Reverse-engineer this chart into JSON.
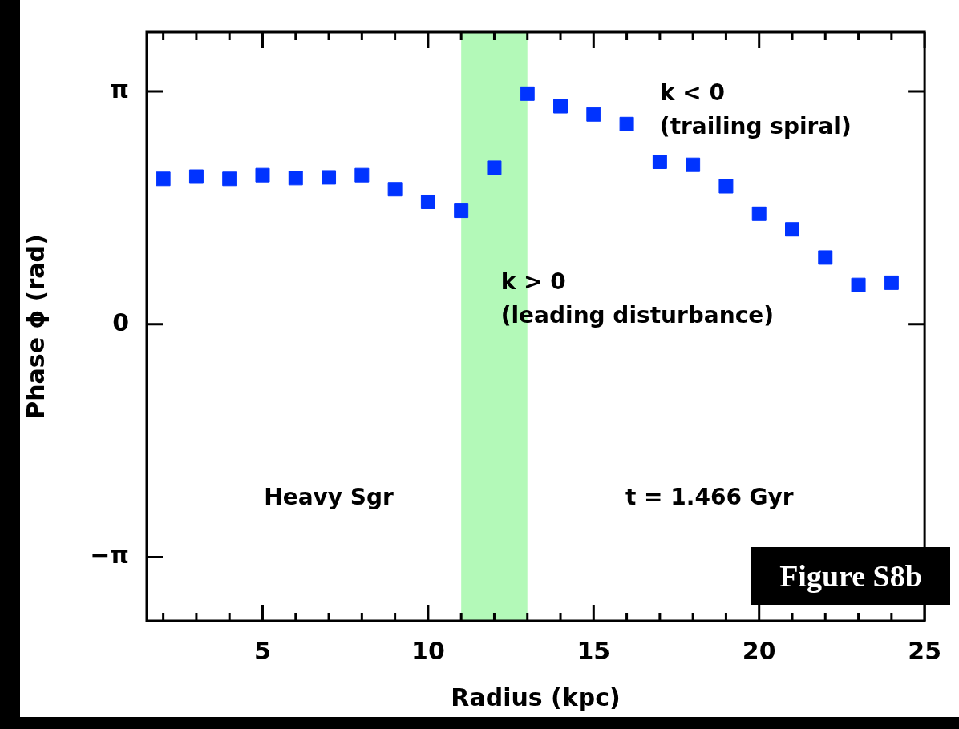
{
  "chart_data": {
    "type": "scatter",
    "xlabel": "Radius (kpc)",
    "ylabel": "Phase ϕ (rad)",
    "x": [
      2,
      3,
      4,
      5,
      6,
      7,
      8,
      9,
      10,
      11,
      12,
      13,
      14,
      15,
      16,
      17,
      18,
      19,
      20,
      21,
      22,
      23,
      24
    ],
    "series": [
      {
        "color": "#0033ff",
        "values": [
          1.96,
          1.99,
          1.96,
          2.01,
          1.97,
          1.98,
          2.01,
          1.82,
          1.65,
          1.53,
          2.11,
          3.11,
          2.94,
          2.83,
          2.7,
          2.19,
          2.15,
          1.86,
          1.49,
          1.28,
          0.9,
          0.53,
          0.56
        ]
      }
    ],
    "xlim": [
      1.5,
      25
    ],
    "xticks": [
      {
        "value": 2,
        "label": null
      },
      {
        "value": 3,
        "label": null
      },
      {
        "value": 4,
        "label": null
      },
      5,
      {
        "value": 6,
        "label": null
      },
      {
        "value": 7,
        "label": null
      },
      {
        "value": 8,
        "label": null
      },
      {
        "value": 9,
        "label": null
      },
      10,
      {
        "value": 11,
        "label": null
      },
      {
        "value": 12,
        "label": null
      },
      {
        "value": 13,
        "label": null
      },
      {
        "value": 14,
        "label": null
      },
      15,
      {
        "value": 16,
        "label": null
      },
      {
        "value": 17,
        "label": null
      },
      {
        "value": 18,
        "label": null
      },
      {
        "value": 19,
        "label": null
      },
      20,
      {
        "value": 21,
        "label": null
      },
      {
        "value": 22,
        "label": null
      },
      {
        "value": 23,
        "label": null
      },
      {
        "value": 24,
        "label": null
      },
      25
    ],
    "ylim": [
      -4,
      3.94
    ],
    "yticks": [
      {
        "value": -3.1416,
        "label": "−π"
      },
      0,
      {
        "value": 3.1416,
        "label": "π"
      }
    ],
    "bands": [
      {
        "axis": "x",
        "from": 11,
        "to": 13,
        "color": "#b3f9b8"
      }
    ],
    "annotations": [
      "k < 0",
      "(trailing spiral)",
      "k > 0",
      "(leading disturbance)",
      "Heavy Sgr",
      "t = 1.466 Gyr",
      "Figure S8b"
    ],
    "marker": "square",
    "grid": false,
    "legend": false
  }
}
